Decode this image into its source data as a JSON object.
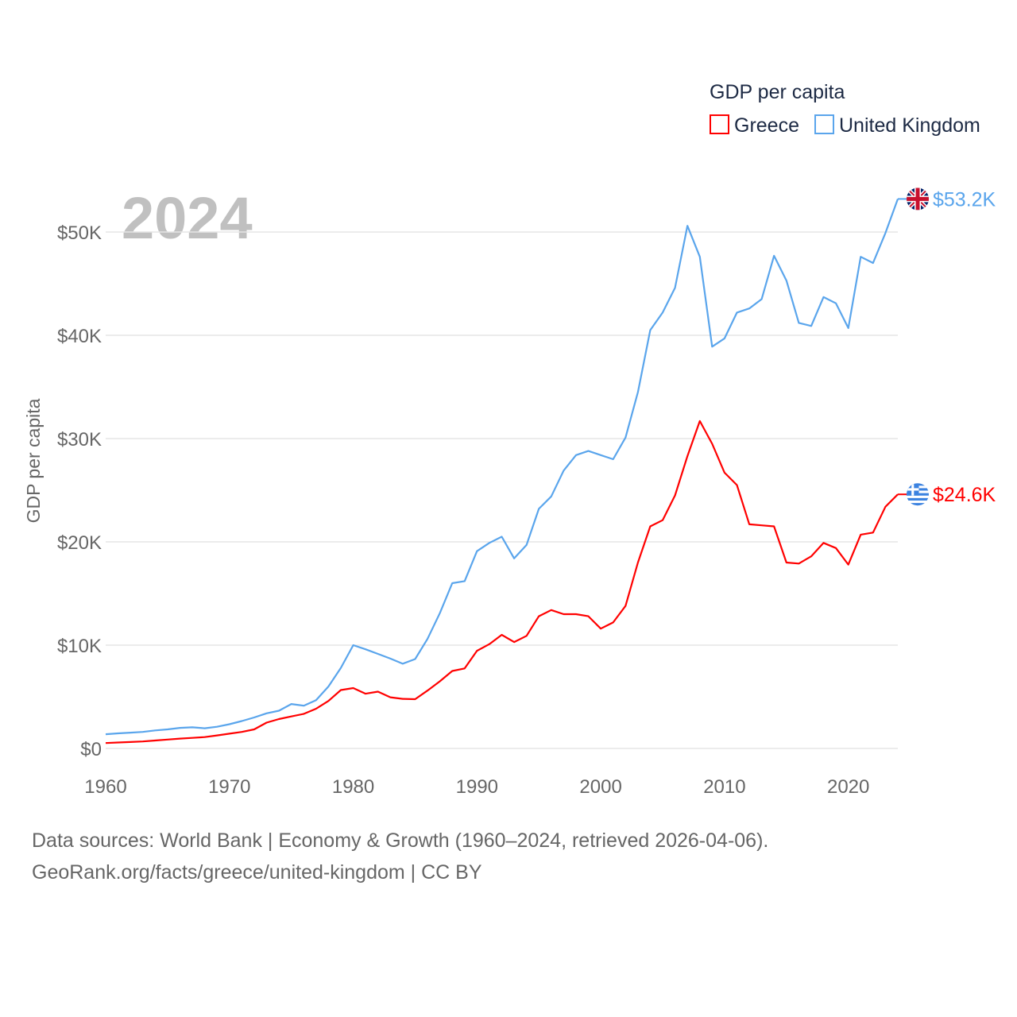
{
  "chart_data": {
    "type": "line",
    "title": "GDP per capita",
    "year_label": "2024",
    "ylabel": "GDP per capita",
    "xlabel": "",
    "xlim": [
      1960,
      2024
    ],
    "ylim": [
      0,
      55000
    ],
    "x_ticks": [
      1960,
      1970,
      1980,
      1990,
      2000,
      2010,
      2020
    ],
    "x_tick_labels": [
      "1960",
      "1970",
      "1980",
      "1990",
      "2000",
      "2010",
      "2020"
    ],
    "y_ticks": [
      0,
      10000,
      20000,
      30000,
      40000,
      50000
    ],
    "y_tick_labels": [
      "$0",
      "$10K",
      "$20K",
      "$30K",
      "$40K",
      "$50K"
    ],
    "grid": true,
    "legend_placement": "top-right",
    "x": [
      1960,
      1961,
      1962,
      1963,
      1964,
      1965,
      1966,
      1967,
      1968,
      1969,
      1970,
      1971,
      1972,
      1973,
      1974,
      1975,
      1976,
      1977,
      1978,
      1979,
      1980,
      1981,
      1982,
      1983,
      1984,
      1985,
      1986,
      1987,
      1988,
      1989,
      1990,
      1991,
      1992,
      1993,
      1994,
      1995,
      1996,
      1997,
      1998,
      1999,
      2000,
      2001,
      2002,
      2003,
      2004,
      2005,
      2006,
      2007,
      2008,
      2009,
      2010,
      2011,
      2012,
      2013,
      2014,
      2015,
      2016,
      2017,
      2018,
      2019,
      2020,
      2021,
      2022,
      2023,
      2024
    ],
    "series": [
      {
        "name": "Greece",
        "color": "#ff0000",
        "end_label": "$24.6K",
        "flag": "greece-flag",
        "values": [
          520,
          580,
          620,
          680,
          770,
          860,
          950,
          1020,
          1100,
          1260,
          1430,
          1600,
          1850,
          2500,
          2850,
          3100,
          3350,
          3850,
          4600,
          5650,
          5850,
          5300,
          5500,
          4950,
          4800,
          4770,
          5600,
          6500,
          7500,
          7750,
          9450,
          10100,
          11000,
          10300,
          10900,
          12800,
          13400,
          13000,
          13000,
          12800,
          11600,
          12200,
          13800,
          18000,
          21500,
          22100,
          24500,
          28300,
          31700,
          29500,
          26700,
          25500,
          21700,
          21600,
          21500,
          18000,
          17900,
          18600,
          19900,
          19400,
          17800,
          20700,
          20900,
          23400,
          24600
        ]
      },
      {
        "name": "United Kingdom",
        "color": "#5aa5ec",
        "end_label": "$53.2K",
        "flag": "uk-flag",
        "values": [
          1380,
          1460,
          1530,
          1600,
          1750,
          1850,
          1990,
          2050,
          1950,
          2100,
          2350,
          2650,
          3000,
          3400,
          3650,
          4300,
          4140,
          4680,
          6000,
          7800,
          10000,
          9600,
          9150,
          8700,
          8200,
          8650,
          10600,
          13100,
          16000,
          16200,
          19100,
          19900,
          20500,
          18400,
          19700,
          23200,
          24400,
          26900,
          28400,
          28800,
          28400,
          28000,
          30100,
          34500,
          40500,
          42200,
          44600,
          50600,
          47600,
          38900,
          39700,
          42200,
          42600,
          43500,
          47700,
          45300,
          41200,
          40900,
          43700,
          43100,
          40700,
          47600,
          47000,
          49900,
          53200
        ]
      }
    ]
  },
  "footer": {
    "line1": "Data sources: World Bank | Economy & Growth (1960–2024, retrieved 2026-04-06).",
    "line2": "GeoRank.org/facts/greece/united-kingdom | CC BY"
  }
}
